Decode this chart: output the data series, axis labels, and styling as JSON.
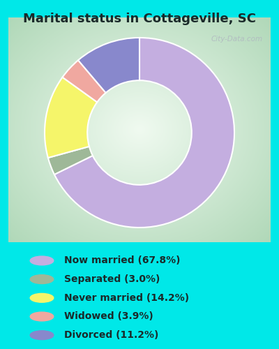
{
  "title": "Marital status in Cottageville, SC",
  "slices": [
    67.8,
    3.0,
    14.2,
    3.9,
    11.2
  ],
  "labels": [
    "Now married (67.8%)",
    "Separated (3.0%)",
    "Never married (14.2%)",
    "Widowed (3.9%)",
    "Divorced (11.2%)"
  ],
  "colors": [
    "#c4aee0",
    "#9eb898",
    "#f5f56a",
    "#f0a8a0",
    "#8888cc"
  ],
  "bg_color": "#00e8e8",
  "title_fontsize": 13,
  "legend_fontsize": 10,
  "donut_width": 0.45,
  "start_angle": 90,
  "watermark": "City-Data.com",
  "legend_text_color": "#1a2a2a"
}
